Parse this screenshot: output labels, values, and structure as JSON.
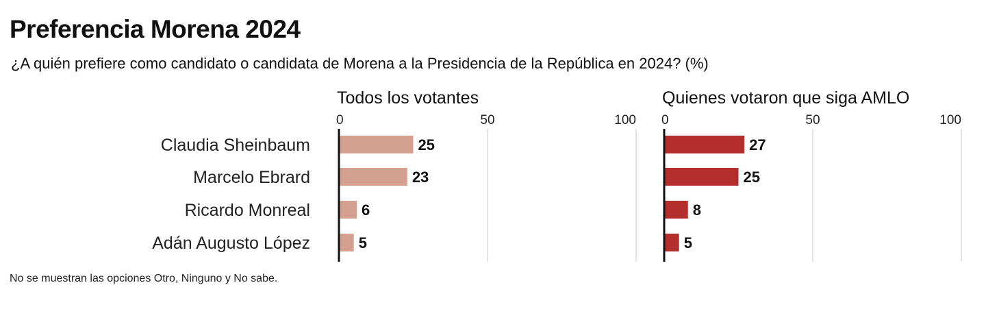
{
  "title": "Preferencia Morena 2024",
  "subtitle": "¿A quién prefiere como candidato o candidata de Morena a la Presidencia de la República en 2024? (%)",
  "note": "No se muestran las opciones Otro, Ninguno y No sabe.",
  "chart_data": [
    {
      "type": "bar",
      "orientation": "horizontal",
      "title": "Todos los votantes",
      "categories": [
        "Claudia Sheinbaum",
        "Marcelo Ebrard",
        "Ricardo Monreal",
        "Adán Augusto López"
      ],
      "values": [
        25,
        23,
        6,
        5
      ],
      "xlim": [
        0,
        100
      ],
      "ticks": [
        0,
        50,
        100
      ],
      "grid": true,
      "color": "#d4a190"
    },
    {
      "type": "bar",
      "orientation": "horizontal",
      "title": "Quienes votaron que siga AMLO",
      "categories": [
        "Claudia Sheinbaum",
        "Marcelo Ebrard",
        "Ricardo Monreal",
        "Adán Augusto López"
      ],
      "values": [
        27,
        25,
        8,
        5
      ],
      "xlim": [
        0,
        100
      ],
      "ticks": [
        0,
        50,
        100
      ],
      "grid": true,
      "color": "#b52e2e"
    }
  ]
}
